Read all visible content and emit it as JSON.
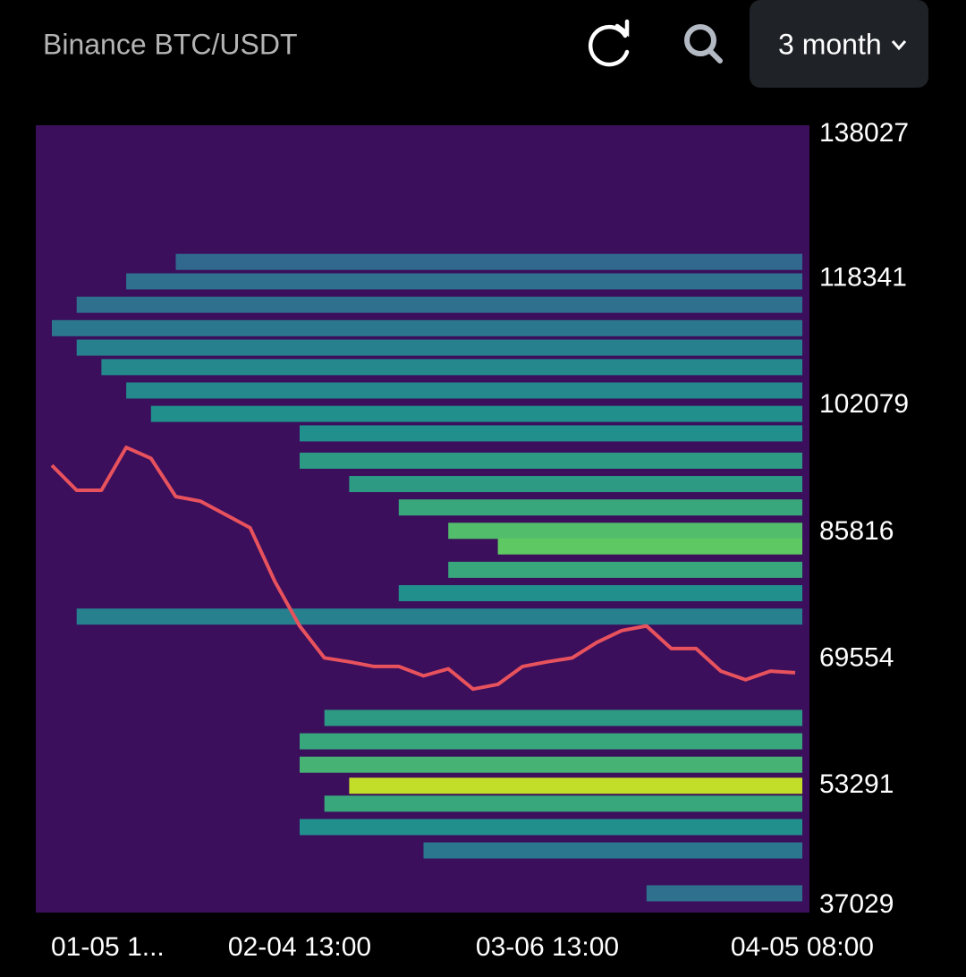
{
  "header": {
    "title": "Binance BTC/USDT",
    "range": "3 month"
  },
  "chart_data": {
    "type": "line",
    "categories": [
      "01-05 1...",
      null,
      null,
      null,
      null,
      null,
      null,
      null,
      null,
      null,
      "02-04 13:00",
      null,
      null,
      null,
      null,
      null,
      null,
      null,
      null,
      null,
      "03-06 13:00",
      null,
      null,
      null,
      null,
      null,
      null,
      null,
      null,
      null,
      "04-05 08:00"
    ],
    "values": [
      94400,
      91200,
      91200,
      96700,
      95300,
      90400,
      89800,
      88100,
      86400,
      79500,
      73800,
      69700,
      69200,
      68600,
      68600,
      67400,
      68300,
      65700,
      66300,
      68600,
      69200,
      69700,
      71700,
      73200,
      73800,
      70900,
      70900,
      68000,
      66900,
      68000,
      67800
    ],
    "color": "#e8525d",
    "ylim": [
      37029,
      138027
    ],
    "yticks": [
      138027,
      118341,
      102079,
      85816,
      69554,
      53291,
      37029
    ],
    "heatmap": {
      "prices": [
        120500,
        118000,
        115000,
        112000,
        109500,
        107000,
        104000,
        101000,
        98500,
        95000,
        92000,
        89000,
        86000,
        84000,
        81000,
        78000,
        75000,
        62000,
        59000,
        56000,
        53300,
        51000,
        48000,
        45000,
        39500
      ],
      "start": [
        5,
        3,
        1,
        0,
        1,
        2,
        3,
        4,
        10,
        10,
        12,
        14,
        16,
        18,
        16,
        14,
        1,
        11,
        10,
        10,
        12,
        11,
        10,
        15,
        24
      ],
      "intensity": [
        0.25,
        0.3,
        0.3,
        0.35,
        0.4,
        0.45,
        0.45,
        0.5,
        0.5,
        0.55,
        0.55,
        0.6,
        0.7,
        0.75,
        0.6,
        0.5,
        0.4,
        0.55,
        0.6,
        0.65,
        0.95,
        0.6,
        0.5,
        0.35,
        0.3
      ]
    }
  }
}
